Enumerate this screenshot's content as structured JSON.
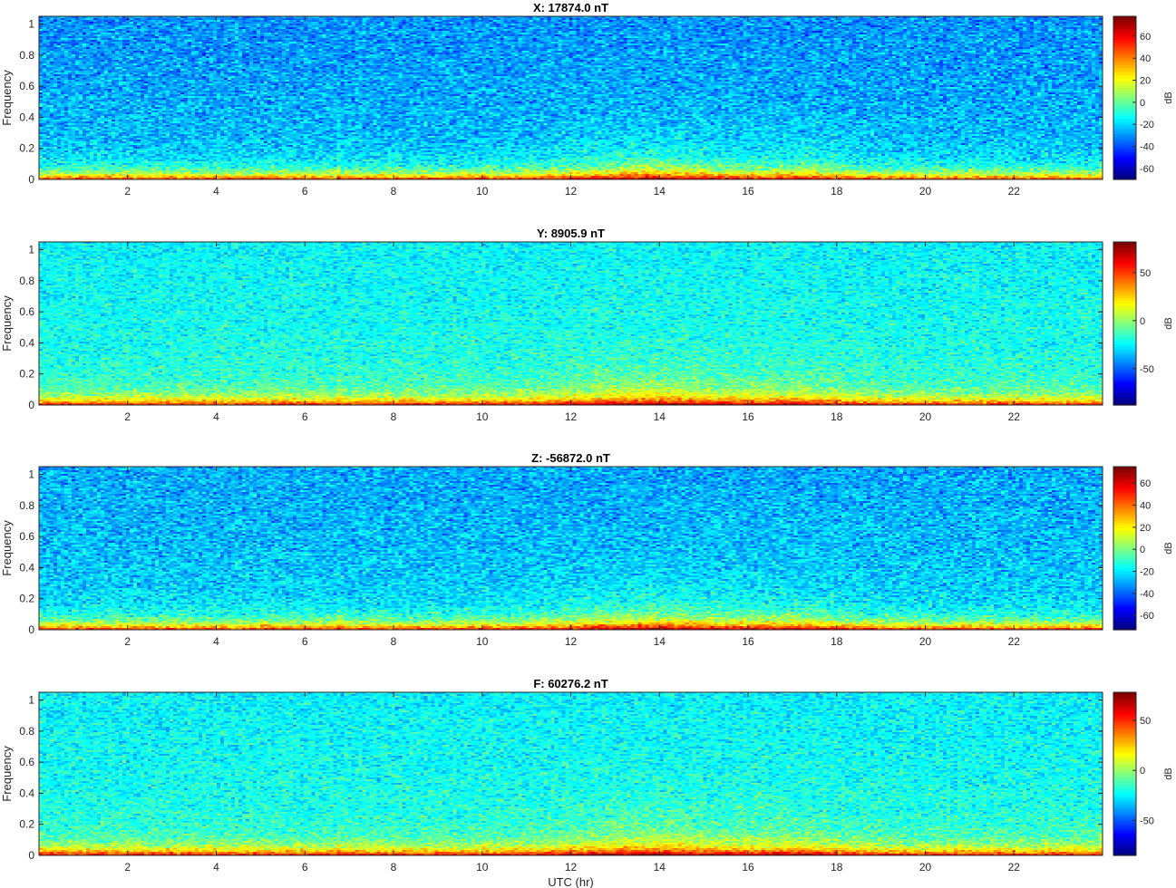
{
  "chart_data": [
    {
      "type": "heatmap",
      "title": "X: 17874.0 nT",
      "ylabel": "Frequency",
      "xlabel": "",
      "xlim": [
        0,
        24
      ],
      "ylim": [
        0,
        1.05
      ],
      "x_ticks": [
        "2",
        "4",
        "6",
        "8",
        "10",
        "12",
        "14",
        "16",
        "18",
        "20",
        "22"
      ],
      "y_ticks": [
        "0",
        "0.2",
        "0.4",
        "0.6",
        "0.8",
        "1"
      ],
      "colorbar": {
        "label": "dB",
        "range": [
          -70,
          78
        ],
        "ticks": [
          "60",
          "40",
          "20",
          "0",
          "-20",
          "-40",
          "-60"
        ],
        "tick_values": [
          60,
          40,
          20,
          0,
          -20,
          -40,
          -60
        ]
      },
      "background_db": -30
    },
    {
      "type": "heatmap",
      "title": "Y: 8905.9 nT",
      "ylabel": "Frequency",
      "xlabel": "",
      "xlim": [
        0,
        24
      ],
      "ylim": [
        0,
        1.05
      ],
      "x_ticks": [
        "2",
        "4",
        "6",
        "8",
        "10",
        "12",
        "14",
        "16",
        "18",
        "20",
        "22"
      ],
      "y_ticks": [
        "0",
        "0.2",
        "0.4",
        "0.6",
        "0.8",
        "1"
      ],
      "colorbar": {
        "label": "dB",
        "range": [
          -88,
          82
        ],
        "ticks": [
          "50",
          "0",
          "-50"
        ],
        "tick_values": [
          50,
          0,
          -50
        ]
      },
      "background_db": -25
    },
    {
      "type": "heatmap",
      "title": "Z: -56872.0 nT",
      "ylabel": "Frequency",
      "xlabel": "",
      "xlim": [
        0,
        24
      ],
      "ylim": [
        0,
        1.05
      ],
      "x_ticks": [
        "2",
        "4",
        "6",
        "8",
        "10",
        "12",
        "14",
        "16",
        "18",
        "20",
        "22"
      ],
      "y_ticks": [
        "0",
        "0.2",
        "0.4",
        "0.6",
        "0.8",
        "1"
      ],
      "colorbar": {
        "label": "dB",
        "range": [
          -73,
          75
        ],
        "ticks": [
          "60",
          "40",
          "20",
          "0",
          "-20",
          "-40",
          "-60"
        ],
        "tick_values": [
          60,
          40,
          20,
          0,
          -20,
          -40,
          -60
        ]
      },
      "background_db": -30
    },
    {
      "type": "heatmap",
      "title": "F: 60276.2 nT",
      "ylabel": "Frequency",
      "xlabel": "UTC (hr)",
      "xlim": [
        0,
        24
      ],
      "ylim": [
        0,
        1.05
      ],
      "x_ticks": [
        "2",
        "4",
        "6",
        "8",
        "10",
        "12",
        "14",
        "16",
        "18",
        "20",
        "22"
      ],
      "y_ticks": [
        "0",
        "0.2",
        "0.4",
        "0.6",
        "0.8",
        "1"
      ],
      "colorbar": {
        "label": "dB",
        "range": [
          -85,
          78
        ],
        "ticks": [
          "50",
          "0",
          "-50"
        ],
        "tick_values": [
          50,
          0,
          -50
        ]
      },
      "background_db": -25
    }
  ],
  "colormap": "jet",
  "axis_color": "#262626"
}
